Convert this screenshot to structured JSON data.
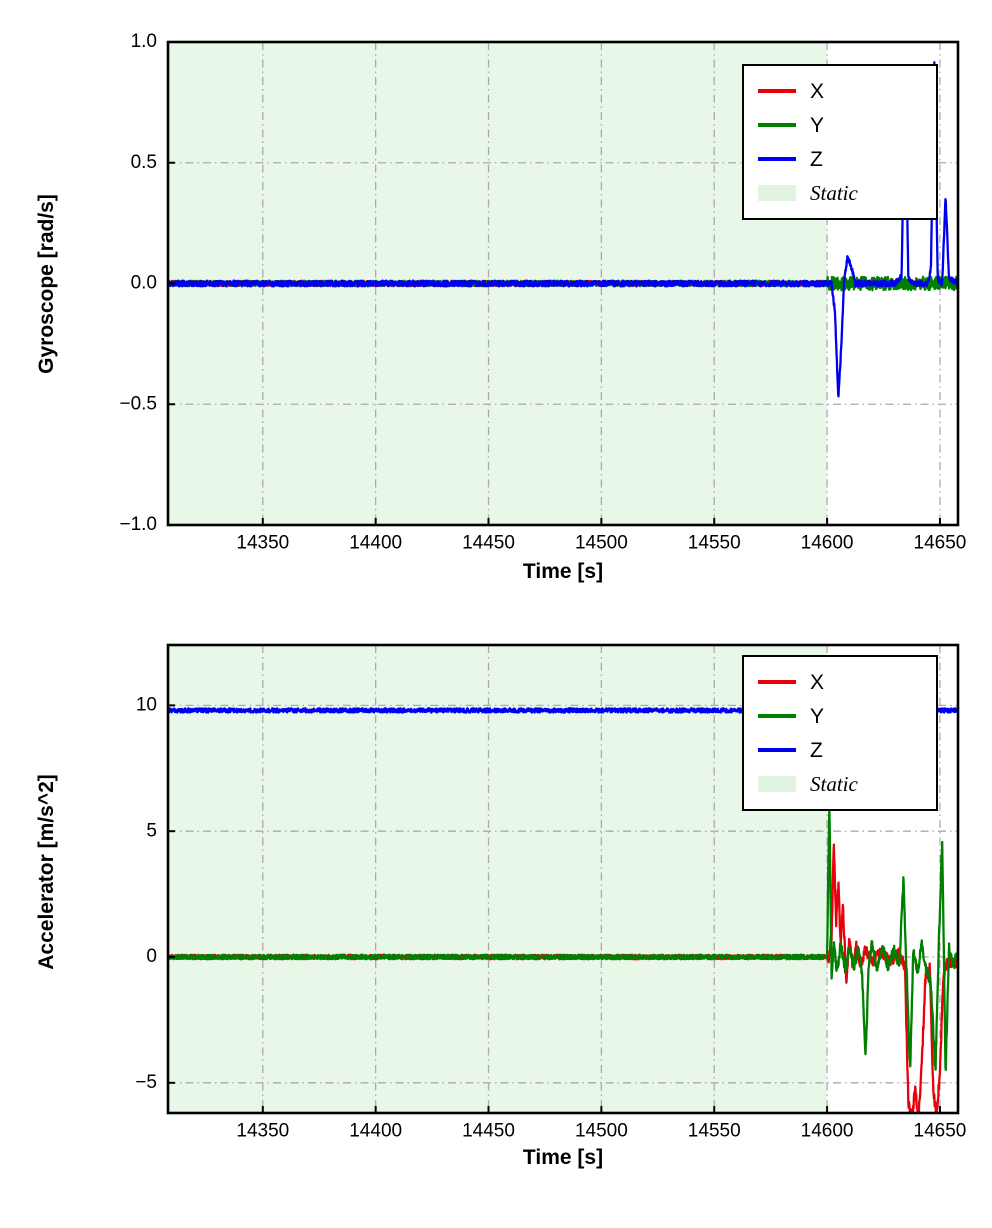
{
  "chart_data": [
    {
      "type": "line",
      "title": "",
      "xlabel": "Time [s]",
      "ylabel": "Gyroscope [rad/s]",
      "xlim": [
        14308,
        14658
      ],
      "ylim": [
        -1.0,
        1.0
      ],
      "xticks": [
        14350,
        14400,
        14450,
        14500,
        14550,
        14600,
        14650
      ],
      "xtick_labels": [
        "14350",
        "14400",
        "14450",
        "14500",
        "14550",
        "14600",
        "14650"
      ],
      "yticks": [
        -1.0,
        -0.5,
        0.0,
        0.5,
        1.0
      ],
      "ytick_labels": [
        "−1.0",
        "−0.5",
        "0.0",
        "0.5",
        "1.0"
      ],
      "grid": true,
      "grid_style": "dashdot",
      "grid_color": "#ababab",
      "legend_position": "upper right",
      "static_region": {
        "from": 14308,
        "to": 14600,
        "color": "#e8f7e8",
        "label": "Static"
      },
      "legend": [
        {
          "label": "X",
          "color": "#e8000b",
          "type": "line",
          "italic": false
        },
        {
          "label": "Y",
          "color": "#008000",
          "type": "line",
          "italic": false
        },
        {
          "label": "Z",
          "color": "#0000f0",
          "type": "line",
          "italic": false
        },
        {
          "label": "Static",
          "color": "#e1f3e1",
          "type": "patch",
          "italic": true
        }
      ],
      "series": [
        {
          "name": "X",
          "color": "#e8000b",
          "anchors": [
            [
              14308,
              0
            ],
            [
              14658,
              0
            ]
          ],
          "noise": [
            [
              14308,
              14658,
              0.011
            ]
          ]
        },
        {
          "name": "Y",
          "color": "#008000",
          "anchors": [
            [
              14308,
              0
            ],
            [
              14658,
              0
            ]
          ],
          "noise": [
            [
              14308,
              14600,
              0.011
            ],
            [
              14600,
              14658,
              0.028
            ]
          ]
        },
        {
          "name": "Z",
          "color": "#0000f0",
          "anchors": [
            [
              14308,
              0
            ],
            [
              14602,
              0
            ],
            [
              14603.5,
              -0.12
            ],
            [
              14605,
              -0.48
            ],
            [
              14606.5,
              -0.22
            ],
            [
              14607.5,
              0.0
            ],
            [
              14609,
              0.11
            ],
            [
              14610.5,
              0.08
            ],
            [
              14612.5,
              0.0
            ],
            [
              14630,
              0.0
            ],
            [
              14633,
              0.03
            ],
            [
              14634.5,
              0.86
            ],
            [
              14636,
              0.02
            ],
            [
              14638,
              0.0
            ],
            [
              14644.5,
              0.0
            ],
            [
              14646,
              0.06
            ],
            [
              14647.5,
              0.92
            ],
            [
              14649,
              0.02
            ],
            [
              14651,
              0.0
            ],
            [
              14652.5,
              0.36
            ],
            [
              14654,
              0.02
            ],
            [
              14658,
              0.0
            ]
          ],
          "noise": [
            [
              14308,
              14658,
              0.012
            ]
          ]
        }
      ]
    },
    {
      "type": "line",
      "title": "",
      "xlabel": "Time [s]",
      "ylabel": "Accelerator [m/s^2]",
      "xlim": [
        14308,
        14658
      ],
      "ylim": [
        -6.2,
        12.4
      ],
      "xticks": [
        14350,
        14400,
        14450,
        14500,
        14550,
        14600,
        14650
      ],
      "xtick_labels": [
        "14350",
        "14400",
        "14450",
        "14500",
        "14550",
        "14600",
        "14650"
      ],
      "yticks": [
        -5,
        0,
        5,
        10
      ],
      "ytick_labels": [
        "−5",
        "0",
        "5",
        "10"
      ],
      "grid": true,
      "grid_style": "dashdot",
      "grid_color": "#ababab",
      "legend_position": "upper right",
      "static_region": {
        "from": 14308,
        "to": 14600,
        "color": "#e8f7e8",
        "label": "Static"
      },
      "legend": [
        {
          "label": "X",
          "color": "#e8000b",
          "type": "line",
          "italic": false
        },
        {
          "label": "Y",
          "color": "#008000",
          "type": "line",
          "italic": false
        },
        {
          "label": "Z",
          "color": "#0000f0",
          "type": "line",
          "italic": false
        },
        {
          "label": "Static",
          "color": "#e1f3e1",
          "type": "patch",
          "italic": true
        }
      ],
      "series": [
        {
          "name": "X",
          "color": "#e8000b",
          "anchors": [
            [
              14308,
              0
            ],
            [
              14601,
              0
            ],
            [
              14602,
              0.9
            ],
            [
              14603,
              4.6
            ],
            [
              14604,
              1.3
            ],
            [
              14605,
              2.9
            ],
            [
              14606,
              0.4
            ],
            [
              14607,
              2.0
            ],
            [
              14608.5,
              -0.9
            ],
            [
              14610,
              0.8
            ],
            [
              14611.5,
              -0.6
            ],
            [
              14613,
              0.5
            ],
            [
              14615,
              -0.4
            ],
            [
              14617,
              0.3
            ],
            [
              14620,
              -0.2
            ],
            [
              14624,
              0.2
            ],
            [
              14628,
              -0.2
            ],
            [
              14632,
              0.2
            ],
            [
              14634.5,
              -0.4
            ],
            [
              14636,
              -5.8
            ],
            [
              14637.5,
              -6.4
            ],
            [
              14639,
              -5.3
            ],
            [
              14640.5,
              -6.4
            ],
            [
              14642,
              -4.2
            ],
            [
              14643.5,
              -0.9
            ],
            [
              14645.5,
              -0.4
            ],
            [
              14647,
              -5.2
            ],
            [
              14648.5,
              -6.4
            ],
            [
              14650,
              -4.5
            ],
            [
              14651.5,
              -0.9
            ],
            [
              14653,
              -0.3
            ],
            [
              14658,
              -0.2
            ]
          ],
          "noise": [
            [
              14308,
              14600,
              0.09
            ],
            [
              14600,
              14658,
              0.22
            ]
          ]
        },
        {
          "name": "Y",
          "color": "#008000",
          "anchors": [
            [
              14308,
              0
            ],
            [
              14600,
              0
            ],
            [
              14601,
              6.2
            ],
            [
              14602,
              -0.9
            ],
            [
              14603,
              0.5
            ],
            [
              14604.5,
              -0.6
            ],
            [
              14606,
              0.5
            ],
            [
              14608,
              -0.5
            ],
            [
              14610,
              0.4
            ],
            [
              14612,
              -0.4
            ],
            [
              14614,
              0.4
            ],
            [
              14615.5,
              -0.7
            ],
            [
              14617,
              -4.1
            ],
            [
              14618.5,
              -0.2
            ],
            [
              14620,
              0.6
            ],
            [
              14622,
              -0.5
            ],
            [
              14624.5,
              0.4
            ],
            [
              14627,
              -0.4
            ],
            [
              14629.5,
              0.3
            ],
            [
              14632,
              -0.3
            ],
            [
              14633.8,
              3.1
            ],
            [
              14635.2,
              -0.5
            ],
            [
              14636.8,
              -4.5
            ],
            [
              14638.2,
              0.4
            ],
            [
              14640,
              -0.6
            ],
            [
              14642,
              0.5
            ],
            [
              14644,
              -0.5
            ],
            [
              14646,
              -1.1
            ],
            [
              14648,
              -4.6
            ],
            [
              14649.5,
              0.5
            ],
            [
              14651,
              4.7
            ],
            [
              14652.5,
              -4.7
            ],
            [
              14654,
              0.4
            ],
            [
              14656,
              -0.4
            ],
            [
              14658,
              0.3
            ]
          ],
          "noise": [
            [
              14308,
              14600,
              0.09
            ],
            [
              14600,
              14658,
              0.2
            ]
          ]
        },
        {
          "name": "Z",
          "color": "#0000f0",
          "anchors": [
            [
              14308,
              9.8
            ],
            [
              14658,
              9.8
            ]
          ],
          "noise": [
            [
              14308,
              14658,
              0.085
            ]
          ]
        }
      ]
    }
  ]
}
